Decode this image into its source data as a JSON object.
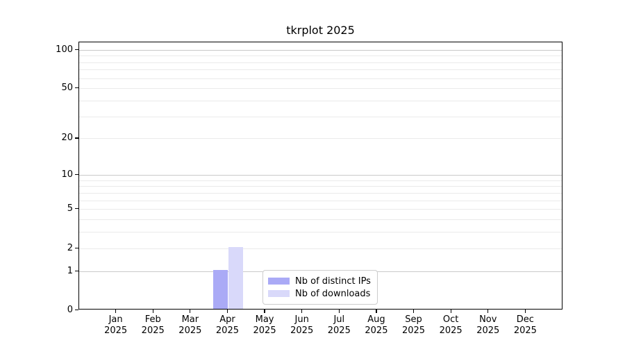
{
  "title": "tkrplot 2025",
  "chart_data": {
    "type": "bar",
    "title": "tkrplot 2025",
    "categories": [
      "Jan",
      "Feb",
      "Mar",
      "Apr",
      "May",
      "Jun",
      "Jul",
      "Aug",
      "Sep",
      "Oct",
      "Nov",
      "Dec"
    ],
    "category_year_line": "2025",
    "series": [
      {
        "name": "Nb of distinct IPs",
        "color": "#aaaaf6",
        "values": [
          0,
          0,
          0,
          1,
          0,
          0,
          0,
          0,
          0,
          0,
          0,
          0
        ]
      },
      {
        "name": "Nb of downloads",
        "color": "#d9d9fa",
        "values": [
          0,
          0,
          0,
          2,
          0,
          0,
          0,
          0,
          0,
          0,
          0,
          0
        ]
      }
    ],
    "y_axis": {
      "scale": "log1p",
      "tick_values": [
        0,
        1,
        2,
        5,
        10,
        20,
        50,
        100
      ],
      "limit_top": 114
    },
    "grid": {
      "major_lines": [
        1,
        10,
        100
      ],
      "minor_lines": [
        2,
        3,
        4,
        5,
        6,
        7,
        8,
        9,
        20,
        30,
        40,
        50,
        60,
        70,
        80,
        90
      ],
      "major_color": "#c9c9c9",
      "minor_color": "#eaeaea"
    },
    "legend_position": "lower center",
    "xlabel": "",
    "ylabel": ""
  }
}
